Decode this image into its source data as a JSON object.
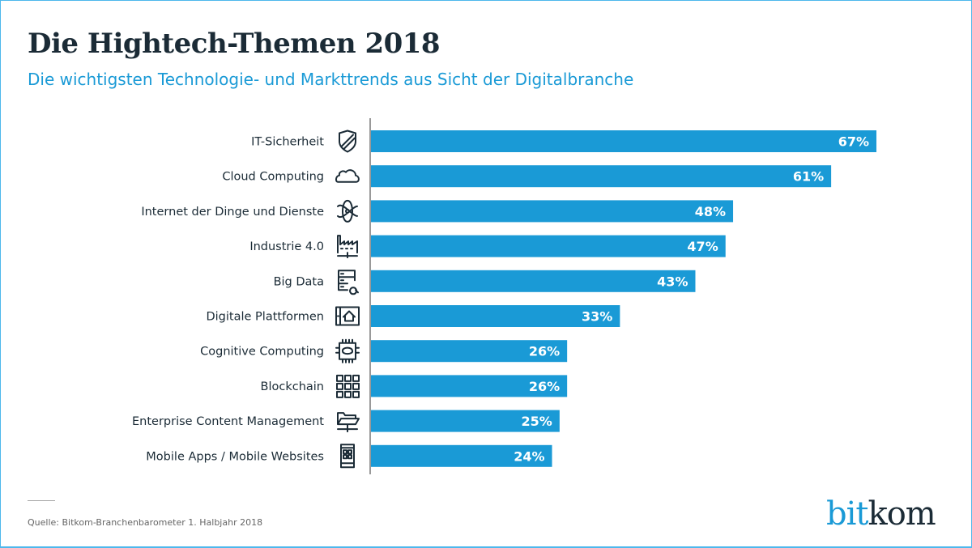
{
  "title": "Die Hightech-Themen 2018",
  "subtitle": "Die wichtigsten Technologie- und Markttrends aus Sicht der Digitalbranche",
  "source": "Quelle: Bitkom-Branchenbarometer 1. Halbjahr 2018",
  "logo": {
    "part1": "bit",
    "part2": "kom"
  },
  "colors": {
    "bar": "#1a9ad6",
    "title": "#1b2b36",
    "subtitle": "#1a9ad6"
  },
  "chart_data": {
    "type": "bar",
    "orientation": "horizontal",
    "categories": [
      "IT-Sicherheit",
      "Cloud Computing",
      "Internet der Dinge und Dienste",
      "Industrie 4.0",
      "Big Data",
      "Digitale Plattformen",
      "Cognitive Computing",
      "Blockchain",
      "Enterprise Content Management",
      "Mobile Apps / Mobile Websites"
    ],
    "icons": [
      "shield-icon",
      "cloud-icon",
      "atom-icon",
      "factory-icon",
      "server-search-icon",
      "tablet-home-icon",
      "chip-brain-icon",
      "blockchain-grid-icon",
      "folder-icon",
      "smartphone-icon"
    ],
    "values": [
      67,
      61,
      48,
      47,
      43,
      33,
      26,
      26,
      25,
      24
    ],
    "data_labels": [
      "67%",
      "61%",
      "48%",
      "47%",
      "43%",
      "33%",
      "26%",
      "26%",
      "25%",
      "24%"
    ],
    "unit": "%",
    "xlim": [
      0,
      67
    ],
    "grid": false,
    "legend": "none"
  }
}
